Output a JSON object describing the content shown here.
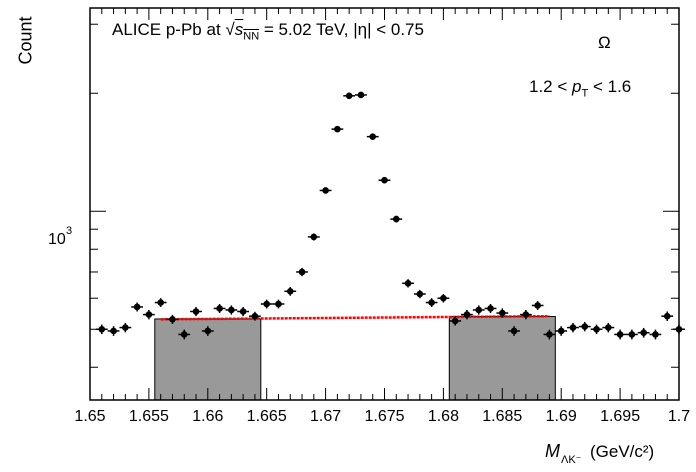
{
  "chart_data": {
    "type": "scatter",
    "ylabel": "Count",
    "xlabel_main": "M",
    "xlabel_sub": "ΛK⁻",
    "xlabel_unit": "(GeV/c²)",
    "header": {
      "system": "ALICE p-Pb at",
      "sqrt_sym": "√",
      "snn_s": "s",
      "snn_sub": "NN",
      "energy": "= 5.02 TeV, |η| < 0.75"
    },
    "particle": "Ω",
    "pt_range": {
      "left": "1.2 <",
      "p": "p",
      "sub": "T",
      "right": "< 1.6"
    },
    "xlim": [
      1.65,
      1.7
    ],
    "ylim": [
      330,
      3300
    ],
    "yscale": "log",
    "x_ticks": [
      1.65,
      1.655,
      1.66,
      1.665,
      1.67,
      1.675,
      1.68,
      1.685,
      1.69,
      1.695,
      1.7
    ],
    "x_tick_labels": [
      "1.65",
      "1.655",
      "1.66",
      "1.665",
      "1.67",
      "1.675",
      "1.68",
      "1.685",
      "1.69",
      "1.695",
      "1.7"
    ],
    "y_major_tick_label": "10",
    "y_major_tick_exp": "3",
    "sideband_regions": [
      [
        1.6555,
        1.6645
      ],
      [
        1.6805,
        1.6895
      ]
    ],
    "background_fit": {
      "x": [
        1.656,
        1.689
      ],
      "y": [
        530,
        540
      ]
    },
    "points": {
      "x": [
        1.651,
        1.652,
        1.653,
        1.654,
        1.655,
        1.656,
        1.657,
        1.658,
        1.659,
        1.66,
        1.661,
        1.662,
        1.663,
        1.664,
        1.665,
        1.666,
        1.667,
        1.668,
        1.669,
        1.67,
        1.671,
        1.672,
        1.673,
        1.674,
        1.675,
        1.676,
        1.677,
        1.678,
        1.679,
        1.68,
        1.681,
        1.682,
        1.683,
        1.684,
        1.685,
        1.686,
        1.687,
        1.688,
        1.689,
        1.69,
        1.691,
        1.692,
        1.693,
        1.694,
        1.695,
        1.696,
        1.697,
        1.698,
        1.699,
        1.7
      ],
      "y": [
        500,
        495,
        505,
        570,
        545,
        585,
        530,
        485,
        555,
        495,
        565,
        560,
        555,
        540,
        580,
        580,
        625,
        700,
        860,
        1130,
        1620,
        1970,
        1980,
        1550,
        1200,
        955,
        655,
        615,
        585,
        600,
        525,
        545,
        560,
        565,
        550,
        495,
        545,
        575,
        485,
        495,
        505,
        508,
        500,
        505,
        485,
        485,
        490,
        485,
        540,
        500
      ],
      "err": [
        14,
        14,
        14,
        15,
        15,
        15,
        14,
        14,
        15,
        14,
        15,
        15,
        15,
        14,
        15,
        15,
        16,
        17,
        18,
        21,
        25,
        28,
        28,
        25,
        22,
        19,
        16,
        15,
        15,
        15,
        14,
        15,
        15,
        15,
        15,
        14,
        15,
        15,
        14,
        14,
        14,
        14,
        14,
        14,
        14,
        14,
        14,
        14,
        15,
        14
      ]
    },
    "colors": {
      "points": "#000000",
      "fit": "#ff0000",
      "sideband": "#999999"
    },
    "grid": false
  }
}
